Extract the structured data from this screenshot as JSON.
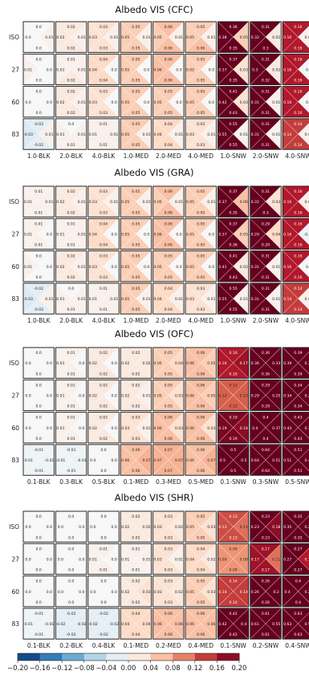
{
  "colorbar": {
    "min": -0.2,
    "max": 0.2,
    "ticks": [
      "−0.20",
      "−0.16",
      "−0.12",
      "−0.08",
      "−0.04",
      "0.00",
      "0.04",
      "0.08",
      "0.12",
      "0.16",
      "0.20"
    ]
  },
  "chart_data": [
    {
      "type": "heatmap",
      "title": "Albedo VIS (CFC)",
      "rows": [
        "ISO",
        "27",
        "60",
        "83"
      ],
      "cols": [
        "1.0-BLK",
        "2.0-BLK",
        "4.0-BLK",
        "1.0-MED",
        "2.0-MED",
        "4.0-MED",
        "1.0-SNW",
        "2.0-SNW",
        "4.0-SNW"
      ],
      "cells": [
        [
          [
            0,
            0,
            0.01,
            0
          ],
          [
            0.02,
            0.02,
            0.01,
            0.02
          ],
          [
            0.03,
            0.03,
            0.01,
            0.03
          ],
          [
            0.05,
            0.05,
            0.01,
            0.05
          ],
          [
            0.06,
            0.05,
            0.01,
            0.06
          ],
          [
            0.05,
            0.05,
            0.01,
            0.06
          ],
          [
            0.36,
            0.38,
            0.05,
            0.35
          ],
          [
            0.31,
            0.32,
            0.02,
            0.3
          ],
          [
            0.16,
            0.16,
            0.01,
            0.16
          ]
        ],
        [
          [
            0,
            0.01,
            0,
            0
          ],
          [
            0.01,
            0.01,
            0.01,
            0.02
          ],
          [
            0.04,
            0.04,
            0,
            0.04
          ],
          [
            0.05,
            0.05,
            0,
            0.05
          ],
          [
            0.06,
            0.06,
            0,
            0.06
          ],
          [
            0.05,
            0.05,
            0,
            0.05
          ],
          [
            0.37,
            0.37,
            0.03,
            0.35
          ],
          [
            0.31,
            0.3,
            0.02,
            0.32
          ],
          [
            0.16,
            0.16,
            0,
            0.16
          ]
        ],
        [
          [
            0,
            0,
            0,
            0
          ],
          [
            0.02,
            0.02,
            0.01,
            0.02
          ],
          [
            0.03,
            0.03,
            0,
            0.03
          ],
          [
            0.05,
            0.05,
            0,
            0.05
          ],
          [
            0.05,
            0.05,
            0,
            0.05
          ],
          [
            0.05,
            0.05,
            0,
            0.05
          ],
          [
            0.41,
            0.42,
            0.03,
            0.43
          ],
          [
            0.31,
            0.31,
            0.01,
            0.31
          ],
          [
            0.16,
            0.16,
            0,
            0.16
          ]
        ],
        [
          [
            -0.02,
            -0.03,
            0.01,
            -0.02
          ],
          [
            0,
            0.01,
            0.01,
            0.01
          ],
          [
            0.01,
            0.01,
            0.01,
            0.01
          ],
          [
            0.05,
            0.05,
            0.01,
            0.05
          ],
          [
            0.04,
            0.04,
            0.01,
            0.04
          ],
          [
            0.03,
            0.03,
            0.01,
            0.03
          ],
          [
            0.55,
            0.55,
            0.01,
            0.55
          ],
          [
            0.31,
            0.31,
            0.01,
            0.31
          ],
          [
            0.14,
            0.14,
            0.01,
            0.14
          ]
        ]
      ]
    },
    {
      "type": "heatmap",
      "title": "Albedo VIS (GRA)",
      "rows": [
        "ISO",
        "27",
        "60",
        "83"
      ],
      "cols": [
        "1.0-BLK",
        "2.0-BLK",
        "4.0-BLK",
        "1.0-MED",
        "2.0-MED",
        "4.0-MED",
        "1.0-SNW",
        "2.0-SNW",
        "4.0-SNW"
      ],
      "cells": [
        [
          [
            0.01,
            0.01,
            0.01,
            0.01
          ],
          [
            0.02,
            0.02,
            0.01,
            0.02
          ],
          [
            0.03,
            0.03,
            0.01,
            0.03
          ],
          [
            0.05,
            0.05,
            0.01,
            0.05
          ],
          [
            0.06,
            0.05,
            0.01,
            0.06
          ],
          [
            0.05,
            0.05,
            0.01,
            0.05
          ],
          [
            0.37,
            0.37,
            0.06,
            0.35
          ],
          [
            0.31,
            0.31,
            0.03,
            0.3
          ],
          [
            0.16,
            0.16,
            0.01,
            0.16
          ]
        ],
        [
          [
            0.01,
            0.01,
            0,
            0.01
          ],
          [
            0.01,
            0.01,
            0.01,
            0.01
          ],
          [
            0.04,
            0.04,
            0,
            0.04
          ],
          [
            0.05,
            0.05,
            0,
            0.05
          ],
          [
            0.06,
            0.06,
            0,
            0.06
          ],
          [
            0.05,
            0.05,
            0,
            0.05
          ],
          [
            0.37,
            0.37,
            0.05,
            0.36
          ],
          [
            0.29,
            0.29,
            0.04,
            0.29
          ],
          [
            0.16,
            0.16,
            -0.01,
            0.16
          ]
        ],
        [
          [
            0,
            0.01,
            0,
            0
          ],
          [
            0.02,
            0.02,
            0.01,
            0.02
          ],
          [
            0.03,
            0.03,
            0,
            0.03
          ],
          [
            0.05,
            0.05,
            0,
            0.05
          ],
          [
            0.05,
            0.05,
            0,
            0.05
          ],
          [
            0.05,
            0.05,
            0,
            0.05
          ],
          [
            0.41,
            0.41,
            0.02,
            0.43
          ],
          [
            0.31,
            0.31,
            0.01,
            0.31
          ],
          [
            0.16,
            0.16,
            0,
            0.16
          ]
        ],
        [
          [
            -0.02,
            -0.03,
            0.01,
            -0.02
          ],
          [
            0,
            0.01,
            0.01,
            0.01
          ],
          [
            0.01,
            0.01,
            0.01,
            0.01
          ],
          [
            0.05,
            0.05,
            0.01,
            0.05
          ],
          [
            0.04,
            0.04,
            0.01,
            0.04
          ],
          [
            0.03,
            0.03,
            0.01,
            0.03
          ],
          [
            0.55,
            0.55,
            0.01,
            0.55
          ],
          [
            0.31,
            0.31,
            0.01,
            0.31
          ],
          [
            0.14,
            0.14,
            0.01,
            0.14
          ]
        ]
      ]
    },
    {
      "type": "heatmap",
      "title": "Albedo VIS (OFC)",
      "rows": [
        "ISO",
        "27",
        "60",
        "83"
      ],
      "cols": [
        "0.1-BLK",
        "0.3-BLK",
        "0.5-BLK",
        "0.1-MED",
        "0.3-MED",
        "0.5-MED",
        "0.1-SNW",
        "0.3-SNW",
        "0.5-SNW"
      ],
      "cells": [
        [
          [
            0,
            0,
            0,
            0
          ],
          [
            0.01,
            0.01,
            0,
            0.01
          ],
          [
            0.02,
            0.02,
            0,
            0.02
          ],
          [
            0.02,
            0.02,
            0.02,
            0.02
          ],
          [
            0.05,
            0.05,
            0.04,
            0.05
          ],
          [
            0.06,
            0.06,
            0.05,
            0.06
          ],
          [
            0.16,
            0.16,
            0.17,
            0.16
          ],
          [
            0.36,
            0.36,
            0.33,
            0.36
          ],
          [
            0.39,
            0.39,
            0.34,
            0.39
          ]
        ],
        [
          [
            0,
            0,
            0,
            0
          ],
          [
            0.01,
            0.01,
            0,
            0.01
          ],
          [
            0.02,
            0.02,
            0,
            0.02
          ],
          [
            0.02,
            0.02,
            0.01,
            0.02
          ],
          [
            0.05,
            0.05,
            0.03,
            0.05
          ],
          [
            0.06,
            0.06,
            0.05,
            0.06
          ],
          [
            0.12,
            0.12,
            0.12,
            0.12
          ],
          [
            0.29,
            0.29,
            0.25,
            0.29
          ],
          [
            0.34,
            0.34,
            0.25,
            0.34
          ]
        ],
        [
          [
            0,
            0,
            0,
            0
          ],
          [
            0.01,
            0.01,
            0,
            0.01
          ],
          [
            0.02,
            0.02,
            0,
            0.02
          ],
          [
            0.03,
            0.03,
            0.01,
            0.03
          ],
          [
            0.06,
            0.06,
            0.03,
            0.06
          ],
          [
            0.06,
            0.06,
            0.03,
            0.06
          ],
          [
            0.19,
            0.19,
            0.18,
            0.19
          ],
          [
            0.4,
            0.4,
            0.37,
            0.4
          ],
          [
            0.43,
            0.43,
            0.37,
            0.43
          ]
        ],
        [
          [
            -0.01,
            -0.01,
            -0.01,
            -0.01
          ],
          [
            -0.01,
            -0.01,
            -0.01,
            -0.01
          ],
          [
            0,
            0,
            0,
            0
          ],
          [
            0.06,
            0.06,
            0.07,
            0.06
          ],
          [
            0.07,
            0.07,
            0.07,
            0.07
          ],
          [
            0.06,
            0.06,
            0.07,
            0.06
          ],
          [
            0.5,
            0.5,
            0.5,
            0.5
          ],
          [
            0.64,
            0.64,
            0.51,
            0.64
          ],
          [
            0.51,
            0.51,
            0.47,
            0.51
          ]
        ]
      ]
    },
    {
      "type": "heatmap",
      "title": "Albedo VIS (SHR)",
      "rows": [
        "ISO",
        "27",
        "60",
        "83"
      ],
      "cols": [
        "0.1-BLK",
        "0.2-BLK",
        "0.4-BLK",
        "0.1-MED",
        "0.2-MED",
        "0.4-MED",
        "0.1-SNW",
        "0.2-SNW",
        "0.4-SNW"
      ],
      "cells": [
        [
          [
            0,
            0,
            0,
            0
          ],
          [
            0,
            0,
            0,
            0
          ],
          [
            0,
            0,
            0,
            0
          ],
          [
            0.02,
            0.02,
            0.02,
            0.02
          ],
          [
            0.03,
            0.03,
            0.02,
            0.03
          ],
          [
            0.05,
            0.05,
            0.03,
            0.05
          ],
          [
            0.13,
            0.13,
            0.11,
            0.13
          ],
          [
            0.23,
            0.23,
            0.18,
            0.23
          ],
          [
            0.35,
            0.35,
            0.24,
            0.35
          ]
        ],
        [
          [
            0,
            0,
            0,
            0
          ],
          [
            0,
            0,
            0,
            0
          ],
          [
            0.01,
            0.01,
            0,
            0.01
          ],
          [
            0.01,
            0.01,
            0.01,
            0.01
          ],
          [
            0.03,
            0.03,
            0.01,
            0.03
          ],
          [
            0.04,
            0.04,
            0.02,
            0.04
          ],
          [
            0.09,
            0.09,
            0.09,
            0.09
          ],
          [
            0.17,
            0.17,
            0.11,
            0.17
          ],
          [
            0.27,
            0.27,
            0.16,
            0.27
          ]
        ],
        [
          [
            0,
            0,
            0,
            0
          ],
          [
            0,
            0,
            0,
            0
          ],
          [
            0,
            0,
            0,
            0
          ],
          [
            0.02,
            0.02,
            0.03,
            0.02
          ],
          [
            0.03,
            0.03,
            0.02,
            0.03
          ],
          [
            0.05,
            0.05,
            0.03,
            0.05
          ],
          [
            0.14,
            0.14,
            0.14,
            0.14
          ],
          [
            0.26,
            0.26,
            0.2,
            0.26
          ],
          [
            0.4,
            0.4,
            0.29,
            0.4
          ]
        ],
        [
          [
            -0.01,
            -0.01,
            -0.01,
            -0.01
          ],
          [
            -0.02,
            -0.02,
            -0.02,
            -0.02
          ],
          [
            -0.02,
            -0.02,
            -0.02,
            -0.02
          ],
          [
            0.04,
            0.04,
            0.04,
            0.04
          ],
          [
            0.06,
            0.06,
            0.06,
            0.06
          ],
          [
            0.06,
            0.06,
            0.06,
            0.06
          ],
          [
            0.42,
            0.42,
            0.4,
            0.42
          ],
          [
            0.61,
            0.61,
            0.55,
            0.61
          ],
          [
            0.63,
            0.63,
            0.53,
            0.63
          ]
        ]
      ]
    }
  ]
}
